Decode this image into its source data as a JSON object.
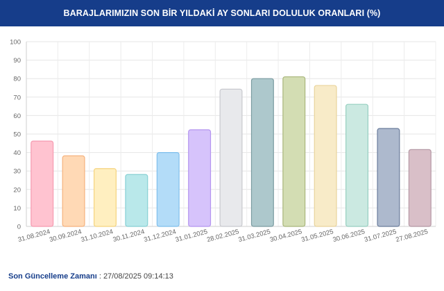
{
  "header": {
    "title": "BARAJLARIMIZIN SON BİR YILDAKİ AY SONLARI DOLULUK ORANLARI (%)"
  },
  "footer": {
    "label": "Son Güncelleme Zamanı",
    "separator": " : ",
    "value": "27/08/2025 09:14:13"
  },
  "chart_data": {
    "type": "bar",
    "title": "BARAJLARIMIZIN SON BİR YILDAKİ AY SONLARI DOLULUK ORANLARI (%)",
    "xlabel": "",
    "ylabel": "",
    "ylim": [
      0,
      100
    ],
    "yticks": [
      0,
      10,
      20,
      30,
      40,
      50,
      60,
      70,
      80,
      90,
      100
    ],
    "grid": true,
    "categories": [
      "31.08.2024",
      "30.09.2024",
      "31.10.2024",
      "30.11.2024",
      "31.12.2024",
      "31.01.2025",
      "28.02.2025",
      "31.03.2025",
      "30.04.2025",
      "31.05.2025",
      "30.06.2025",
      "31.07.2025",
      "27.08.2025"
    ],
    "values": [
      46.2,
      38.2,
      31.3,
      28.1,
      40.0,
      52.3,
      74.3,
      80.0,
      81.0,
      76.3,
      66.1,
      53.0,
      41.6
    ],
    "fill_colors": [
      "#ffc3d0",
      "#ffd9b5",
      "#ffefc0",
      "#b9e8ea",
      "#b3dcf8",
      "#d6c3fb",
      "#e8e9ec",
      "#adc8cc",
      "#d3ddb3",
      "#f8ebc8",
      "#cbe9e1",
      "#adb9cd",
      "#d9bfc8"
    ],
    "stroke_colors": [
      "#f59ab0",
      "#f5b27d",
      "#f5d47e",
      "#86d0d4",
      "#7fbfec",
      "#b494ef",
      "#c8c9ce",
      "#7b9ca1",
      "#a9b67c",
      "#e9d49c",
      "#96cfc0",
      "#6b7d9c",
      "#b497a4"
    ]
  }
}
